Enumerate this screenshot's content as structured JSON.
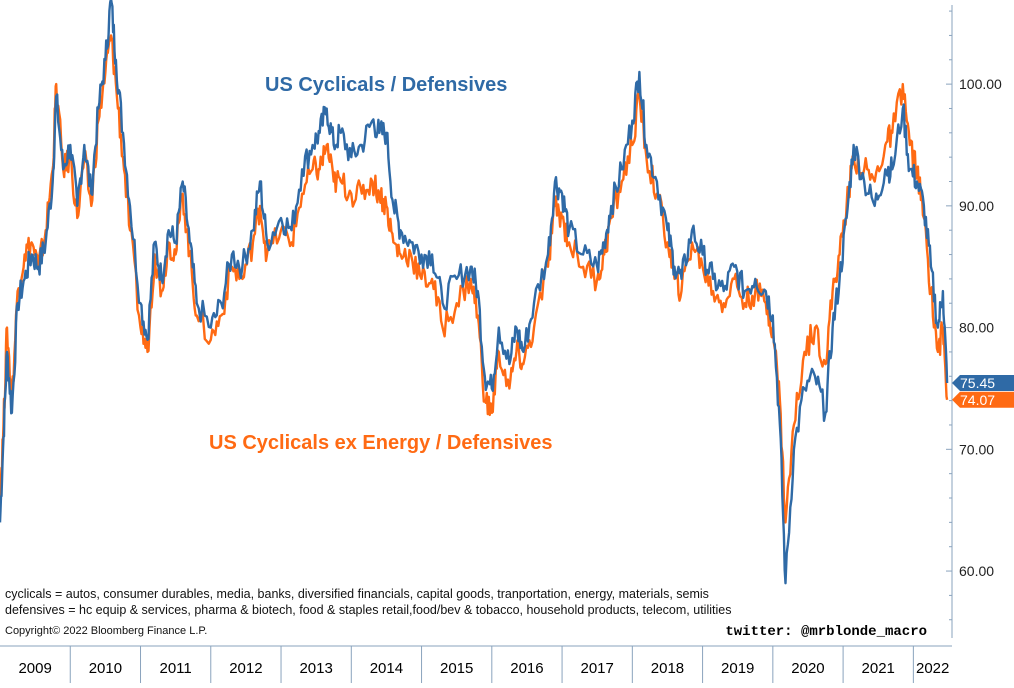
{
  "chart_data": {
    "type": "line",
    "title": "",
    "xlabel": "",
    "ylabel": "",
    "x_range": [
      2009.0,
      2022.55
    ],
    "ylim": [
      54.5,
      106.5
    ],
    "y_ticks": [
      60,
      70,
      80,
      90,
      100
    ],
    "y_tick_labels": [
      "60.00",
      "70.00",
      "80.00",
      "90.00",
      "100.00"
    ],
    "x_categories": [
      "2009",
      "2010",
      "2011",
      "2012",
      "2013",
      "2014",
      "2015",
      "2016",
      "2017",
      "2018",
      "2019",
      "2020",
      "2021",
      "2022"
    ],
    "grid": false,
    "series": [
      {
        "name": "US Cyclicals / Defensives",
        "color": "#2f6aa6",
        "last_value": "75.45",
        "points": [
          [
            2009.0,
            64
          ],
          [
            2009.05,
            71
          ],
          [
            2009.1,
            78
          ],
          [
            2009.17,
            73
          ],
          [
            2009.25,
            82
          ],
          [
            2009.35,
            84
          ],
          [
            2009.45,
            86
          ],
          [
            2009.55,
            85
          ],
          [
            2009.65,
            87
          ],
          [
            2009.75,
            92
          ],
          [
            2009.8,
            99
          ],
          [
            2009.9,
            93
          ],
          [
            2010.0,
            95
          ],
          [
            2010.1,
            90
          ],
          [
            2010.2,
            95
          ],
          [
            2010.3,
            91
          ],
          [
            2010.4,
            98
          ],
          [
            2010.5,
            102
          ],
          [
            2010.58,
            107
          ],
          [
            2010.65,
            102
          ],
          [
            2010.75,
            96
          ],
          [
            2010.85,
            90
          ],
          [
            2011.0,
            82
          ],
          [
            2011.1,
            79
          ],
          [
            2011.2,
            87
          ],
          [
            2011.3,
            84
          ],
          [
            2011.4,
            88
          ],
          [
            2011.5,
            87
          ],
          [
            2011.6,
            92
          ],
          [
            2011.7,
            87
          ],
          [
            2011.8,
            82
          ],
          [
            2012.0,
            80
          ],
          [
            2012.15,
            82
          ],
          [
            2012.3,
            86
          ],
          [
            2012.45,
            85
          ],
          [
            2012.6,
            88
          ],
          [
            2012.7,
            92
          ],
          [
            2012.8,
            87
          ],
          [
            2013.0,
            89
          ],
          [
            2013.15,
            88
          ],
          [
            2013.3,
            93
          ],
          [
            2013.45,
            95
          ],
          [
            2013.55,
            96
          ],
          [
            2013.65,
            98
          ],
          [
            2013.75,
            95
          ],
          [
            2013.85,
            96
          ],
          [
            2014.0,
            94
          ],
          [
            2014.15,
            95
          ],
          [
            2014.3,
            97
          ],
          [
            2014.4,
            96
          ],
          [
            2014.5,
            96
          ],
          [
            2014.6,
            90
          ],
          [
            2014.7,
            88
          ],
          [
            2014.85,
            87
          ],
          [
            2015.0,
            86
          ],
          [
            2015.15,
            86
          ],
          [
            2015.3,
            82
          ],
          [
            2015.5,
            84
          ],
          [
            2015.7,
            85
          ],
          [
            2015.8,
            83
          ],
          [
            2015.9,
            76
          ],
          [
            2016.0,
            75
          ],
          [
            2016.1,
            80
          ],
          [
            2016.25,
            77
          ],
          [
            2016.35,
            80
          ],
          [
            2016.45,
            78
          ],
          [
            2016.6,
            82
          ],
          [
            2016.8,
            86
          ],
          [
            2016.9,
            92
          ],
          [
            2017.0,
            91
          ],
          [
            2017.1,
            88
          ],
          [
            2017.3,
            86
          ],
          [
            2017.5,
            85
          ],
          [
            2017.6,
            87
          ],
          [
            2017.7,
            90
          ],
          [
            2017.85,
            93
          ],
          [
            2018.0,
            97
          ],
          [
            2018.1,
            101
          ],
          [
            2018.2,
            95
          ],
          [
            2018.35,
            92
          ],
          [
            2018.5,
            88
          ],
          [
            2018.6,
            85
          ],
          [
            2018.7,
            84
          ],
          [
            2018.85,
            88
          ],
          [
            2019.0,
            86
          ],
          [
            2019.15,
            84
          ],
          [
            2019.3,
            83
          ],
          [
            2019.45,
            85
          ],
          [
            2019.6,
            83
          ],
          [
            2019.75,
            84
          ],
          [
            2019.9,
            83
          ],
          [
            2020.0,
            81
          ],
          [
            2020.1,
            72
          ],
          [
            2020.18,
            59
          ],
          [
            2020.3,
            70
          ],
          [
            2020.45,
            75
          ],
          [
            2020.6,
            76
          ],
          [
            2020.75,
            73
          ],
          [
            2020.85,
            80
          ],
          [
            2020.95,
            84
          ],
          [
            2021.05,
            89
          ],
          [
            2021.15,
            95
          ],
          [
            2021.3,
            92
          ],
          [
            2021.45,
            90
          ],
          [
            2021.6,
            93
          ],
          [
            2021.7,
            93
          ],
          [
            2021.85,
            98
          ],
          [
            2021.95,
            93
          ],
          [
            2022.05,
            92
          ],
          [
            2022.15,
            90
          ],
          [
            2022.25,
            85
          ],
          [
            2022.35,
            80
          ],
          [
            2022.42,
            83
          ],
          [
            2022.48,
            75.45
          ]
        ]
      },
      {
        "name": "US Cyclicals ex Energy / Defensives",
        "color": "#ff6a13",
        "last_value": "74.07",
        "points": [
          [
            2009.0,
            66
          ],
          [
            2009.05,
            72
          ],
          [
            2009.1,
            80
          ],
          [
            2009.17,
            74
          ],
          [
            2009.25,
            83
          ],
          [
            2009.35,
            86
          ],
          [
            2009.45,
            87
          ],
          [
            2009.55,
            85
          ],
          [
            2009.65,
            88
          ],
          [
            2009.75,
            93
          ],
          [
            2009.8,
            100
          ],
          [
            2009.9,
            93
          ],
          [
            2010.0,
            94
          ],
          [
            2010.1,
            89
          ],
          [
            2010.2,
            94
          ],
          [
            2010.3,
            90
          ],
          [
            2010.4,
            97
          ],
          [
            2010.5,
            101
          ],
          [
            2010.58,
            104
          ],
          [
            2010.65,
            100
          ],
          [
            2010.75,
            94
          ],
          [
            2010.85,
            88
          ],
          [
            2011.0,
            80
          ],
          [
            2011.1,
            78
          ],
          [
            2011.2,
            86
          ],
          [
            2011.3,
            83
          ],
          [
            2011.4,
            87
          ],
          [
            2011.5,
            86
          ],
          [
            2011.6,
            91
          ],
          [
            2011.7,
            86
          ],
          [
            2011.8,
            81
          ],
          [
            2012.0,
            79
          ],
          [
            2012.15,
            81
          ],
          [
            2012.3,
            85
          ],
          [
            2012.45,
            84
          ],
          [
            2012.6,
            87
          ],
          [
            2012.7,
            90
          ],
          [
            2012.8,
            86
          ],
          [
            2013.0,
            88
          ],
          [
            2013.15,
            87
          ],
          [
            2013.3,
            91
          ],
          [
            2013.45,
            93
          ],
          [
            2013.55,
            93
          ],
          [
            2013.65,
            95
          ],
          [
            2013.75,
            92
          ],
          [
            2013.85,
            92
          ],
          [
            2014.0,
            91
          ],
          [
            2014.15,
            91
          ],
          [
            2014.3,
            92
          ],
          [
            2014.4,
            91
          ],
          [
            2014.5,
            90
          ],
          [
            2014.6,
            87
          ],
          [
            2014.7,
            86
          ],
          [
            2014.85,
            86
          ],
          [
            2015.0,
            84
          ],
          [
            2015.15,
            84
          ],
          [
            2015.3,
            80
          ],
          [
            2015.5,
            82
          ],
          [
            2015.7,
            84
          ],
          [
            2015.8,
            81
          ],
          [
            2015.9,
            74
          ],
          [
            2016.0,
            73
          ],
          [
            2016.1,
            78
          ],
          [
            2016.25,
            75
          ],
          [
            2016.35,
            78
          ],
          [
            2016.45,
            77
          ],
          [
            2016.6,
            80
          ],
          [
            2016.8,
            85
          ],
          [
            2016.9,
            90
          ],
          [
            2017.0,
            89
          ],
          [
            2017.1,
            87
          ],
          [
            2017.3,
            85
          ],
          [
            2017.5,
            84
          ],
          [
            2017.6,
            86
          ],
          [
            2017.7,
            89
          ],
          [
            2017.85,
            92
          ],
          [
            2018.0,
            95
          ],
          [
            2018.1,
            99
          ],
          [
            2018.2,
            94
          ],
          [
            2018.35,
            91
          ],
          [
            2018.5,
            87
          ],
          [
            2018.6,
            84
          ],
          [
            2018.7,
            83
          ],
          [
            2018.85,
            87
          ],
          [
            2019.0,
            85
          ],
          [
            2019.15,
            83
          ],
          [
            2019.3,
            82
          ],
          [
            2019.45,
            84
          ],
          [
            2019.6,
            82
          ],
          [
            2019.75,
            83
          ],
          [
            2019.9,
            82
          ],
          [
            2020.0,
            80
          ],
          [
            2020.1,
            74
          ],
          [
            2020.18,
            64
          ],
          [
            2020.3,
            72
          ],
          [
            2020.45,
            78
          ],
          [
            2020.6,
            80
          ],
          [
            2020.75,
            77
          ],
          [
            2020.85,
            83
          ],
          [
            2020.95,
            86
          ],
          [
            2021.05,
            90
          ],
          [
            2021.15,
            94
          ],
          [
            2021.3,
            93
          ],
          [
            2021.45,
            92
          ],
          [
            2021.6,
            95
          ],
          [
            2021.7,
            96
          ],
          [
            2021.85,
            100
          ],
          [
            2021.95,
            95
          ],
          [
            2022.05,
            93
          ],
          [
            2022.15,
            89
          ],
          [
            2022.25,
            83
          ],
          [
            2022.35,
            78
          ],
          [
            2022.42,
            80
          ],
          [
            2022.48,
            74.07
          ]
        ]
      }
    ],
    "annotations": {
      "notes": [
        "cyclicals = autos, consumer durables, media, banks, diversified financials, capital goods, tranportation, energy, materials, semis",
        "defensives = hc equip & services, pharma & biotech, food & staples retail,food/bev & tobacco, household products, telecom, utilities"
      ],
      "copyright": "Copyright© 2022 Bloomberg Finance L.P.",
      "handle": "twitter:  @mrblonde_macro"
    }
  }
}
